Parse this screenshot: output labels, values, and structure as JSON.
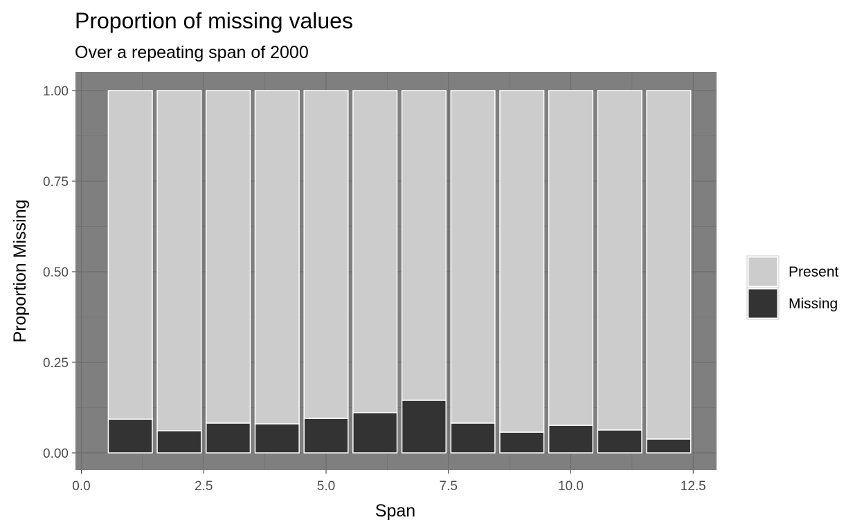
{
  "chart_data": {
    "type": "bar",
    "stacked": true,
    "title": "Proportion of missing values",
    "subtitle": "Over a repeating span of 2000",
    "xlabel": "Span",
    "ylabel": "Proportion Missing",
    "x": [
      1,
      2,
      3,
      4,
      5,
      6,
      7,
      8,
      9,
      10,
      11,
      12
    ],
    "xlim": [
      0,
      12.5
    ],
    "ylim": [
      0,
      1
    ],
    "x_ticks": [
      "0.0",
      "2.5",
      "5.0",
      "7.5",
      "10.0",
      "12.5"
    ],
    "y_ticks": [
      "0.00",
      "0.25",
      "0.50",
      "0.75",
      "1.00"
    ],
    "grid": true,
    "legend_position": "right",
    "series": [
      {
        "name": "Missing",
        "color": "#333333",
        "values": [
          0.093,
          0.061,
          0.082,
          0.08,
          0.095,
          0.111,
          0.145,
          0.082,
          0.057,
          0.076,
          0.063,
          0.038
        ]
      },
      {
        "name": "Present",
        "color": "#cccccc",
        "values": [
          0.907,
          0.939,
          0.918,
          0.92,
          0.905,
          0.889,
          0.855,
          0.918,
          0.943,
          0.924,
          0.937,
          0.962
        ]
      }
    ],
    "legend": [
      "Present",
      "Missing"
    ],
    "panel_background": "#7f7f7f",
    "gridline_color": "#6e6e6e",
    "bar_outline": "#ffffff"
  }
}
